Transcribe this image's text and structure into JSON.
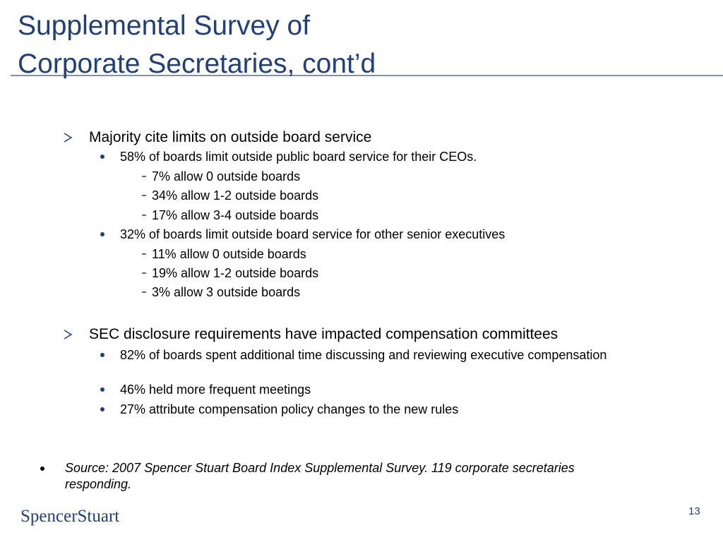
{
  "title": {
    "lines": [
      "Supplemental Survey of",
      "Corporate Secretaries, cont’d"
    ]
  },
  "sections": [
    {
      "heading": "Majority cite limits on outside board service",
      "items": [
        {
          "text": "58% of boards limit outside public board service for their CEOs.",
          "subitems": [
            "7% allow 0 outside boards",
            "34% allow 1-2 outside boards",
            "17% allow 3-4 outside boards"
          ]
        },
        {
          "text": "32% of boards limit outside board service for other senior executives",
          "subitems": [
            "11% allow 0 outside boards",
            "19% allow 1-2 outside boards",
            "3% allow 3 outside boards"
          ]
        }
      ]
    },
    {
      "heading": "SEC disclosure requirements have impacted compensation committees",
      "items": [
        {
          "text": "82% of boards spent additional time discussing and reviewing executive compensation"
        },
        {
          "text": "46% held more frequent meetings"
        },
        {
          "text": "27% attribute compensation policy changes to the new rules"
        }
      ]
    }
  ],
  "source": "Source: 2007 Spencer Stuart Board Index Supplemental Survey. 119 corporate secretaries responding.",
  "footer": {
    "logo": "SpencerStuart",
    "page": "13"
  }
}
